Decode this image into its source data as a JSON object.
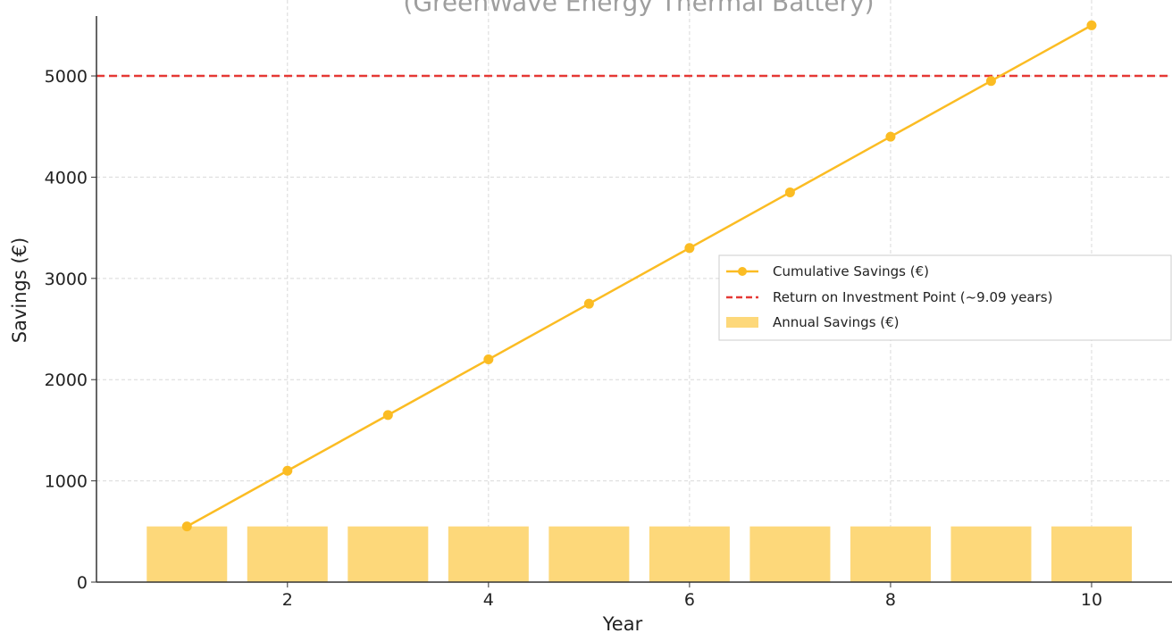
{
  "chart_data": {
    "type": "bar",
    "title": "(GreenWave Energy Thermal Battery)",
    "xlabel": "Year",
    "ylabel": "Savings (€)",
    "x_ticks": [
      2,
      4,
      6,
      8,
      10
    ],
    "y_ticks": [
      0,
      1000,
      2000,
      3000,
      4000,
      5000
    ],
    "xlim": [
      0.1,
      10.8
    ],
    "ylim": [
      0,
      5750
    ],
    "grid": true,
    "legend_position": "center-right",
    "series": [
      {
        "name": "Cumulative Savings (€)",
        "kind": "line",
        "color": "#fbbc23",
        "x": [
          1,
          2,
          3,
          4,
          5,
          6,
          7,
          8,
          9,
          10
        ],
        "values": [
          550,
          1100,
          1650,
          2200,
          2750,
          3300,
          3850,
          4400,
          4950,
          5500
        ]
      },
      {
        "name": "Annual Savings (€)",
        "kind": "bar",
        "color": "#fdd87a",
        "x": [
          1,
          2,
          3,
          4,
          5,
          6,
          7,
          8,
          9,
          10
        ],
        "values": [
          550,
          550,
          550,
          550,
          550,
          550,
          550,
          550,
          550,
          550
        ]
      }
    ],
    "reference_lines": [
      {
        "name": "Return on Investment Point (~9.09 years)",
        "kind": "hline",
        "color": "#e53935",
        "y": 5000
      }
    ]
  }
}
